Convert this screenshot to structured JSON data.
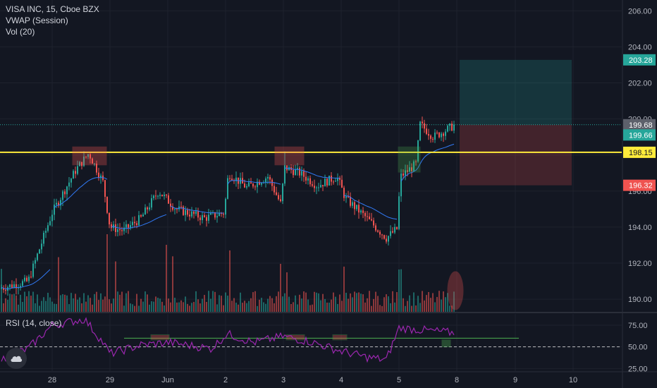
{
  "symbol": {
    "title": "VISA INC, 15, Cboe BZX",
    "indicator_vwap": "VWAP (Session)",
    "indicator_vol": "Vol (20)"
  },
  "rsi": {
    "label": "RSI (14, close)"
  },
  "colors": {
    "background": "#131722",
    "grid": "#1e222d",
    "up": "#26a69a",
    "down": "#ef5350",
    "vwap": "#3179f5",
    "rsi": "#9c27b0",
    "support_line": "#ffeb3b",
    "box": "#ef5350",
    "box_green": "#4caf50",
    "target_zone": "#26a69a",
    "stop_zone": "#ef5350"
  },
  "chart_data": [
    {
      "type": "candlestick",
      "title": "VISA INC, 15, Cboe BZX",
      "x_tick_labels": [
        "28",
        "29",
        "Jun",
        "2",
        "3",
        "4",
        "5",
        "8",
        "9",
        "10"
      ],
      "y_tick_labels": [
        "206.00",
        "204.00",
        "202.00",
        "200.00",
        "198.00",
        "196.00",
        "194.00",
        "192.00",
        "190.00"
      ],
      "ylim": [
        189.3,
        206.6
      ],
      "price_labels": [
        {
          "value": 203.28,
          "text": "203.28",
          "kind": "target"
        },
        {
          "value": 199.68,
          "text": "199.68",
          "kind": "last"
        },
        {
          "value": 199.66,
          "text": "199.66",
          "kind": "vwap"
        },
        {
          "value": 198.15,
          "text": "198.15",
          "kind": "support"
        },
        {
          "value": 196.32,
          "text": "196.32",
          "kind": "stop"
        }
      ],
      "support_level": 198.15,
      "position": {
        "entry": 199.68,
        "target": 203.28,
        "stop": 196.32
      },
      "key_closes": [
        {
          "session": "start",
          "value": 190.6
        },
        {
          "session": "28",
          "value": 194.8
        },
        {
          "session": "28 high",
          "value": 198.1
        },
        {
          "session": "29",
          "value": 194.0
        },
        {
          "session": "Jun",
          "value": 195.0
        },
        {
          "session": "2",
          "value": 196.6
        },
        {
          "session": "3",
          "value": 197.0
        },
        {
          "session": "4",
          "value": 195.0
        },
        {
          "session": "4 low",
          "value": 193.4
        },
        {
          "session": "5",
          "value": 197.5
        },
        {
          "session": "5 close",
          "value": 199.68
        }
      ]
    },
    {
      "type": "line",
      "title": "RSI (14, close)",
      "y_tick_labels": [
        "75.00",
        "50.00",
        "25.00"
      ],
      "ylim": [
        22,
        88
      ],
      "reference_levels": [
        50,
        60
      ],
      "key_values": [
        {
          "session": "start",
          "value": 35
        },
        {
          "session": "28",
          "value": 75
        },
        {
          "session": "28 high",
          "value": 82
        },
        {
          "session": "29",
          "value": 42
        },
        {
          "session": "2",
          "value": 65
        },
        {
          "session": "3",
          "value": 62
        },
        {
          "session": "4 low",
          "value": 35
        },
        {
          "session": "5",
          "value": 72
        },
        {
          "session": "5 close",
          "value": 66
        }
      ]
    }
  ]
}
